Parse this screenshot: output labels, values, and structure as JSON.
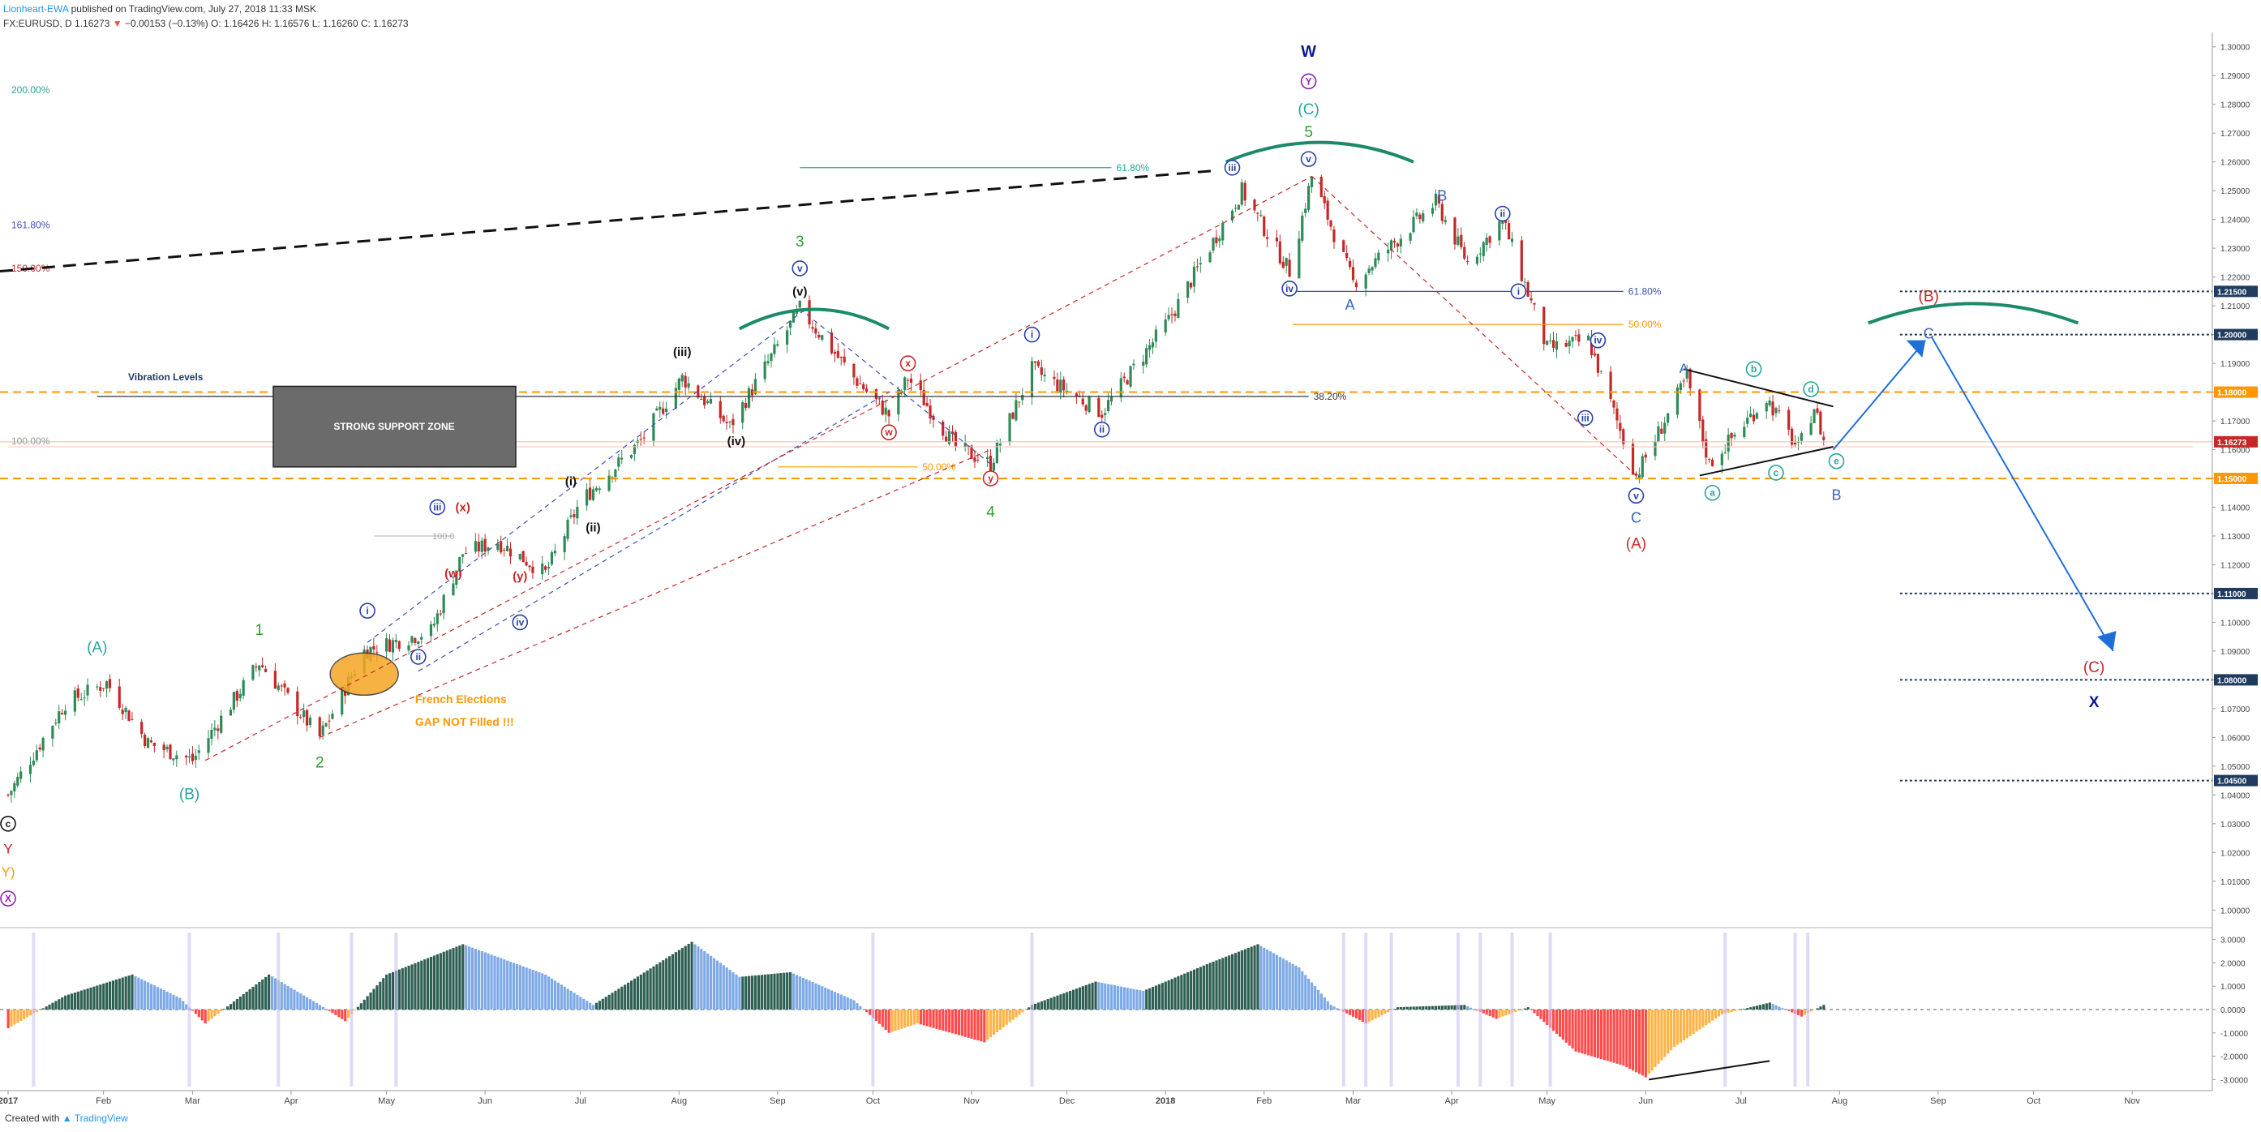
{
  "header": {
    "author": "Lionheart-EWA",
    "published": "published on TradingView.com, July 27, 2018 11:33 MSK",
    "symbol_line_prefix": "FX:EURUSD, D  1.16273 ",
    "down_arrow": "▼",
    "change": " −0.00153 (−0.13%) ",
    "ohlc": "O: 1.16426  H: 1.16576  L: 1.16260  C: 1.16273"
  },
  "footer": {
    "created_with": "Created with",
    "brand": "TradingView"
  },
  "colors": {
    "up": "#2e8b57",
    "down": "#c62828",
    "accent_blue": "#2962ff",
    "orange": "#ff9800",
    "histo_dark": "#2f5f54",
    "histo_blue": "#7da9e6",
    "histo_red": "#ff4b4b",
    "histo_orange": "#ffb347"
  },
  "chart_data": {
    "type": "candlestick",
    "symbol": "FX:EURUSD",
    "timeframe": "D",
    "ylim": [
      0.995,
      1.305
    ],
    "price_axis_ticks": [
      "1.30000",
      "1.29000",
      "1.28000",
      "1.27000",
      "1.26000",
      "1.25000",
      "1.24000",
      "1.23000",
      "1.22000",
      "1.21000",
      "1.20000",
      "1.19000",
      "1.18000",
      "1.17000",
      "1.16000",
      "1.15000",
      "1.14000",
      "1.13000",
      "1.12000",
      "1.11000",
      "1.10000",
      "1.09000",
      "1.08000",
      "1.07000",
      "1.06000",
      "1.05000",
      "1.04000",
      "1.03000",
      "1.02000",
      "1.01000",
      "1.00000"
    ],
    "highlighted_levels": [
      "1.21500",
      "1.20000",
      "1.18000",
      "1.16273",
      "1.15000",
      "1.11000",
      "1.08000",
      "1.04500"
    ],
    "x_labels": [
      "2017",
      "Feb",
      "Mar",
      "Apr",
      "May",
      "Jun",
      "Jul",
      "Aug",
      "Sep",
      "Oct",
      "Nov",
      "Dec",
      "2018",
      "Feb",
      "Mar",
      "Apr",
      "May",
      "Jun",
      "Jul",
      "Aug",
      "Sep",
      "Oct",
      "Nov"
    ],
    "price_path": [
      {
        "d": "2017-01-02",
        "p": 1.04
      },
      {
        "d": "2017-01-20",
        "p": 1.072
      },
      {
        "d": "2017-02-02",
        "p": 1.079
      },
      {
        "d": "2017-02-15",
        "p": 1.058
      },
      {
        "d": "2017-03-01",
        "p": 1.052
      },
      {
        "d": "2017-03-22",
        "p": 1.086
      },
      {
        "d": "2017-04-10",
        "p": 1.06
      },
      {
        "d": "2017-04-24",
        "p": 1.09
      },
      {
        "d": "2017-05-15",
        "p": 1.097
      },
      {
        "d": "2017-05-25",
        "p": 1.124
      },
      {
        "d": "2017-06-05",
        "p": 1.128
      },
      {
        "d": "2017-06-20",
        "p": 1.117
      },
      {
        "d": "2017-07-01",
        "p": 1.142
      },
      {
        "d": "2017-07-20",
        "p": 1.163
      },
      {
        "d": "2017-08-02",
        "p": 1.185
      },
      {
        "d": "2017-08-17",
        "p": 1.168
      },
      {
        "d": "2017-09-08",
        "p": 1.209
      },
      {
        "d": "2017-09-25",
        "p": 1.185
      },
      {
        "d": "2017-10-06",
        "p": 1.172
      },
      {
        "d": "2017-10-12",
        "p": 1.185
      },
      {
        "d": "2017-10-27",
        "p": 1.161
      },
      {
        "d": "2017-11-07",
        "p": 1.155
      },
      {
        "d": "2017-11-20",
        "p": 1.188
      },
      {
        "d": "2017-12-12",
        "p": 1.173
      },
      {
        "d": "2018-01-02",
        "p": 1.205
      },
      {
        "d": "2018-01-25",
        "p": 1.25
      },
      {
        "d": "2018-02-09",
        "p": 1.222
      },
      {
        "d": "2018-02-16",
        "p": 1.255
      },
      {
        "d": "2018-03-01",
        "p": 1.218
      },
      {
        "d": "2018-03-27",
        "p": 1.246
      },
      {
        "d": "2018-04-06",
        "p": 1.225
      },
      {
        "d": "2018-04-17",
        "p": 1.24
      },
      {
        "d": "2018-05-01",
        "p": 1.195
      },
      {
        "d": "2018-05-14",
        "p": 1.198
      },
      {
        "d": "2018-05-29",
        "p": 1.151
      },
      {
        "d": "2018-06-14",
        "p": 1.185
      },
      {
        "d": "2018-06-21",
        "p": 1.155
      },
      {
        "d": "2018-07-09",
        "p": 1.178
      },
      {
        "d": "2018-07-19",
        "p": 1.16
      },
      {
        "d": "2018-07-24",
        "p": 1.175
      },
      {
        "d": "2018-07-27",
        "p": 1.163
      }
    ],
    "oscillator": {
      "ticks": [
        "3.0000",
        "2.0000",
        "1.0000",
        "0.0000",
        "-1.0000",
        "-2.0000",
        "-3.0000"
      ],
      "ylim": [
        -3.3,
        3.3
      ],
      "path": [
        {
          "d": "2017-01-02",
          "v": -0.8
        },
        {
          "d": "2017-01-20",
          "v": 0.6
        },
        {
          "d": "2017-02-10",
          "v": 1.5
        },
        {
          "d": "2017-02-25",
          "v": 0.5
        },
        {
          "d": "2017-03-05",
          "v": -0.6
        },
        {
          "d": "2017-03-25",
          "v": 1.5
        },
        {
          "d": "2017-04-10",
          "v": 0.2
        },
        {
          "d": "2017-04-18",
          "v": -0.5
        },
        {
          "d": "2017-05-01",
          "v": 1.5
        },
        {
          "d": "2017-05-25",
          "v": 2.8
        },
        {
          "d": "2017-06-20",
          "v": 1.5
        },
        {
          "d": "2017-07-05",
          "v": 0.2
        },
        {
          "d": "2017-07-20",
          "v": 1.5
        },
        {
          "d": "2017-08-05",
          "v": 2.9
        },
        {
          "d": "2017-08-20",
          "v": 1.4
        },
        {
          "d": "2017-09-05",
          "v": 1.6
        },
        {
          "d": "2017-09-25",
          "v": 0.4
        },
        {
          "d": "2017-10-06",
          "v": -1.0
        },
        {
          "d": "2017-10-15",
          "v": -0.6
        },
        {
          "d": "2017-11-05",
          "v": -1.4
        },
        {
          "d": "2017-11-20",
          "v": 0.2
        },
        {
          "d": "2017-12-10",
          "v": 1.2
        },
        {
          "d": "2017-12-25",
          "v": 0.8
        },
        {
          "d": "2018-01-15",
          "v": 2.0
        },
        {
          "d": "2018-01-30",
          "v": 2.8
        },
        {
          "d": "2018-02-12",
          "v": 1.8
        },
        {
          "d": "2018-02-22",
          "v": 0.2
        },
        {
          "d": "2018-03-05",
          "v": -0.6
        },
        {
          "d": "2018-03-15",
          "v": 0.1
        },
        {
          "d": "2018-04-05",
          "v": 0.2
        },
        {
          "d": "2018-04-15",
          "v": -0.4
        },
        {
          "d": "2018-04-25",
          "v": 0.1
        },
        {
          "d": "2018-05-10",
          "v": -1.8
        },
        {
          "d": "2018-05-25",
          "v": -2.4
        },
        {
          "d": "2018-06-01",
          "v": -2.9
        },
        {
          "d": "2018-06-10",
          "v": -1.6
        },
        {
          "d": "2018-06-25",
          "v": -0.2
        },
        {
          "d": "2018-07-10",
          "v": 0.3
        },
        {
          "d": "2018-07-20",
          "v": -0.3
        },
        {
          "d": "2018-07-27",
          "v": 0.2
        }
      ]
    },
    "horizontal_levels": [
      {
        "price": 1.215,
        "label": "61.80%",
        "color": "#3f51b5",
        "from": "2018-02-10",
        "to": "2018-05-25"
      },
      {
        "price": 1.2035,
        "label": "50.00%",
        "color": "#ff9800",
        "from": "2018-02-10",
        "to": "2018-05-25"
      },
      {
        "price": 1.1785,
        "label": "38.20%",
        "color": "#333333",
        "from": "2017-01-30",
        "to": "2018-02-15"
      },
      {
        "price": 1.154,
        "label": "50.00%",
        "color": "#ff9800",
        "from": "2017-09-01",
        "to": "2017-10-15"
      },
      {
        "price": 1.258,
        "label": "61.80%",
        "color": "#26a69a",
        "from": "2017-09-08",
        "to": "2017-12-15"
      }
    ],
    "left_labels": [
      {
        "text": "200.00%",
        "color": "#26a69a"
      },
      {
        "text": "161.80%",
        "color": "#3f51b5"
      },
      {
        "text": "150.00%",
        "color": "#c62828"
      },
      {
        "text": "100.00%",
        "color": "#999999"
      }
    ],
    "annotations": {
      "vibration_levels": "Vibration Levels",
      "support_zone": "STRONG SUPPORT ZONE",
      "french_line1": "French Elections",
      "french_line2": "GAP NOT Filled !!!",
      "level_100": "100.0"
    },
    "wave_labels": [
      {
        "text": "W",
        "d": "2018-02-15",
        "p": 1.298,
        "color": "#0d1a8f",
        "size": 20,
        "bold": true
      },
      {
        "text": "Y",
        "d": "2018-02-15",
        "p": 1.288,
        "color": "#8e24aa",
        "circle": true
      },
      {
        "text": "(C)",
        "d": "2018-02-15",
        "p": 1.278,
        "color": "#26a69a",
        "size": 19
      },
      {
        "text": "5",
        "d": "2018-02-15",
        "p": 1.27,
        "color": "#2e9e2e",
        "size": 19
      },
      {
        "text": "v",
        "d": "2018-02-15",
        "p": 1.261,
        "color": "#2940a8",
        "circle": true
      },
      {
        "text": "iii",
        "d": "2018-01-22",
        "p": 1.258,
        "color": "#2940a8",
        "circle": true
      },
      {
        "text": "iv",
        "d": "2018-02-09",
        "p": 1.216,
        "color": "#2940a8",
        "circle": true
      },
      {
        "text": "B",
        "d": "2018-03-29",
        "p": 1.248,
        "color": "#3366bb",
        "size": 18
      },
      {
        "text": "ii",
        "d": "2018-04-17",
        "p": 1.242,
        "color": "#2940a8",
        "circle": true
      },
      {
        "text": "A",
        "d": "2018-02-28",
        "p": 1.21,
        "color": "#3366bb",
        "size": 18
      },
      {
        "text": "i",
        "d": "2018-04-22",
        "p": 1.215,
        "color": "#2940a8",
        "circle": true
      },
      {
        "text": "iv",
        "d": "2018-05-17",
        "p": 1.198,
        "color": "#2940a8",
        "circle": true
      },
      {
        "text": "iii",
        "d": "2018-05-13",
        "p": 1.171,
        "color": "#2940a8",
        "circle": true
      },
      {
        "text": "v",
        "d": "2018-05-29",
        "p": 1.144,
        "color": "#2940a8",
        "circle": true
      },
      {
        "text": "C",
        "d": "2018-05-29",
        "p": 1.136,
        "color": "#3366bb",
        "size": 18
      },
      {
        "text": "(A)",
        "d": "2018-05-29",
        "p": 1.127,
        "color": "#c62828",
        "size": 19
      },
      {
        "text": "A",
        "d": "2018-06-13",
        "p": 1.188,
        "color": "#3366bb",
        "size": 17
      },
      {
        "text": "b",
        "d": "2018-07-05",
        "p": 1.188,
        "color": "#26a69a",
        "circle": true
      },
      {
        "text": "d",
        "d": "2018-07-23",
        "p": 1.181,
        "color": "#26a69a",
        "circle": true
      },
      {
        "text": "a",
        "d": "2018-06-22",
        "p": 1.145,
        "color": "#26a69a",
        "circle": true
      },
      {
        "text": "c",
        "d": "2018-07-12",
        "p": 1.152,
        "color": "#26a69a",
        "circle": true
      },
      {
        "text": "e",
        "d": "2018-07-31",
        "p": 1.156,
        "color": "#26a69a",
        "circle": true
      },
      {
        "text": "B",
        "d": "2018-07-31",
        "p": 1.144,
        "color": "#3366bb",
        "size": 18
      },
      {
        "text": "C",
        "d": "2018-08-29",
        "p": 1.2,
        "color": "#3366bb",
        "size": 18
      },
      {
        "text": "(B)",
        "d": "2018-08-29",
        "p": 1.213,
        "color": "#c62828",
        "size": 19
      },
      {
        "text": "(C)",
        "d": "2018-10-20",
        "p": 1.084,
        "color": "#c62828",
        "size": 19
      },
      {
        "text": "X",
        "d": "2018-10-20",
        "p": 1.072,
        "color": "#0d1a8f",
        "size": 19,
        "bold": true
      },
      {
        "text": "3",
        "d": "2017-09-08",
        "p": 1.232,
        "color": "#2e9e2e",
        "size": 19
      },
      {
        "text": "v",
        "d": "2017-09-08",
        "p": 1.223,
        "color": "#2940a8",
        "circle": true
      },
      {
        "text": "(v)",
        "d": "2017-09-08",
        "p": 1.215,
        "color": "#111111",
        "size": 15,
        "bold": true
      },
      {
        "text": "(iii)",
        "d": "2017-08-02",
        "p": 1.194,
        "color": "#111111",
        "size": 15,
        "bold": true
      },
      {
        "text": "(iv)",
        "d": "2017-08-19",
        "p": 1.163,
        "color": "#111111",
        "size": 15,
        "bold": true
      },
      {
        "text": "(i)",
        "d": "2017-06-28",
        "p": 1.149,
        "color": "#111111",
        "size": 15,
        "bold": true
      },
      {
        "text": "(ii)",
        "d": "2017-07-05",
        "p": 1.133,
        "color": "#111111",
        "size": 15,
        "bold": true
      },
      {
        "text": "x",
        "d": "2017-10-12",
        "p": 1.19,
        "color": "#c62828",
        "circle": true
      },
      {
        "text": "w",
        "d": "2017-10-06",
        "p": 1.166,
        "color": "#c62828",
        "circle": true
      },
      {
        "text": "y",
        "d": "2017-11-07",
        "p": 1.15,
        "color": "#c62828",
        "circle": true
      },
      {
        "text": "4",
        "d": "2017-11-07",
        "p": 1.138,
        "color": "#2e9e2e",
        "size": 19
      },
      {
        "text": "i",
        "d": "2017-11-20",
        "p": 1.2,
        "color": "#2940a8",
        "circle": true
      },
      {
        "text": "ii",
        "d": "2017-12-12",
        "p": 1.167,
        "color": "#2940a8",
        "circle": true
      },
      {
        "text": "(x)",
        "d": "2017-05-25",
        "p": 1.14,
        "color": "#c62828",
        "size": 15,
        "bold": true
      },
      {
        "text": "(w)",
        "d": "2017-05-22",
        "p": 1.117,
        "color": "#c62828",
        "size": 15,
        "bold": true
      },
      {
        "text": "(y)",
        "d": "2017-06-12",
        "p": 1.116,
        "color": "#c62828",
        "size": 15,
        "bold": true
      },
      {
        "text": "iii",
        "d": "2017-05-17",
        "p": 1.14,
        "color": "#2940a8",
        "circle": true
      },
      {
        "text": "iv",
        "d": "2017-06-12",
        "p": 1.1,
        "color": "#2940a8",
        "circle": true
      },
      {
        "text": "i",
        "d": "2017-04-25",
        "p": 1.104,
        "color": "#2940a8",
        "circle": true
      },
      {
        "text": "ii",
        "d": "2017-05-11",
        "p": 1.088,
        "color": "#2940a8",
        "circle": true
      },
      {
        "text": "1",
        "d": "2017-03-22",
        "p": 1.097,
        "color": "#2e9e2e",
        "size": 19
      },
      {
        "text": "2",
        "d": "2017-04-10",
        "p": 1.051,
        "color": "#2e9e2e",
        "size": 19
      },
      {
        "text": "(A)",
        "d": "2017-01-30",
        "p": 1.091,
        "color": "#26a69a",
        "size": 19
      },
      {
        "text": "(B)",
        "d": "2017-02-28",
        "p": 1.04,
        "color": "#26a69a",
        "size": 19
      },
      {
        "text": "c",
        "d": "2017-01-02",
        "p": 1.03,
        "color": "#111111",
        "circle": true
      },
      {
        "text": "Y",
        "d": "2017-01-02",
        "p": 1.021,
        "color": "#c62828",
        "size": 17
      },
      {
        "text": "Y)",
        "d": "2017-01-02",
        "p": 1.013,
        "color": "#ff9800",
        "size": 17
      },
      {
        "text": "X",
        "d": "2017-01-02",
        "p": 1.004,
        "color": "#8e24aa",
        "circle": true
      }
    ]
  }
}
